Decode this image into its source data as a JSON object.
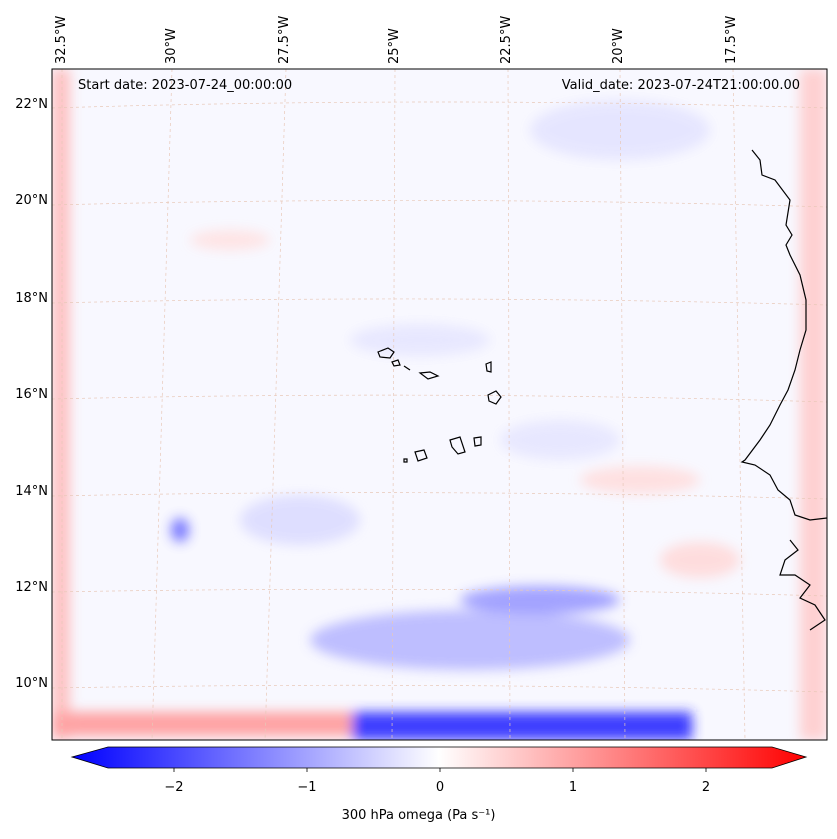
{
  "header": {
    "start_date": "Start date: 2023-07-24_00:00:00",
    "valid_date": "Valid_date: 2023-07-24T21:00:00.00"
  },
  "axes": {
    "lat_labels": [
      "22°N",
      "20°N",
      "18°N",
      "16°N",
      "14°N",
      "12°N",
      "10°N"
    ],
    "lon_labels": [
      "32.5°W",
      "30°W",
      "27.5°W",
      "25°W",
      "22.5°W",
      "20°W",
      "17.5°W"
    ]
  },
  "colorbar": {
    "label": "300 hPa omega (Pa s⁻¹)",
    "ticks": [
      "−2",
      "−1",
      "0",
      "1",
      "2"
    ],
    "tick_values": [
      -2,
      -1,
      0,
      1,
      2
    ],
    "range": [
      -2.5,
      2.5
    ],
    "colors": {
      "low": "#0000ff",
      "mid": "#ffffff",
      "high": "#ff0000"
    }
  },
  "map": {
    "variable": "300 hPa omega",
    "coastline_color": "#000000",
    "gridline_color": "#e8c8b8"
  }
}
